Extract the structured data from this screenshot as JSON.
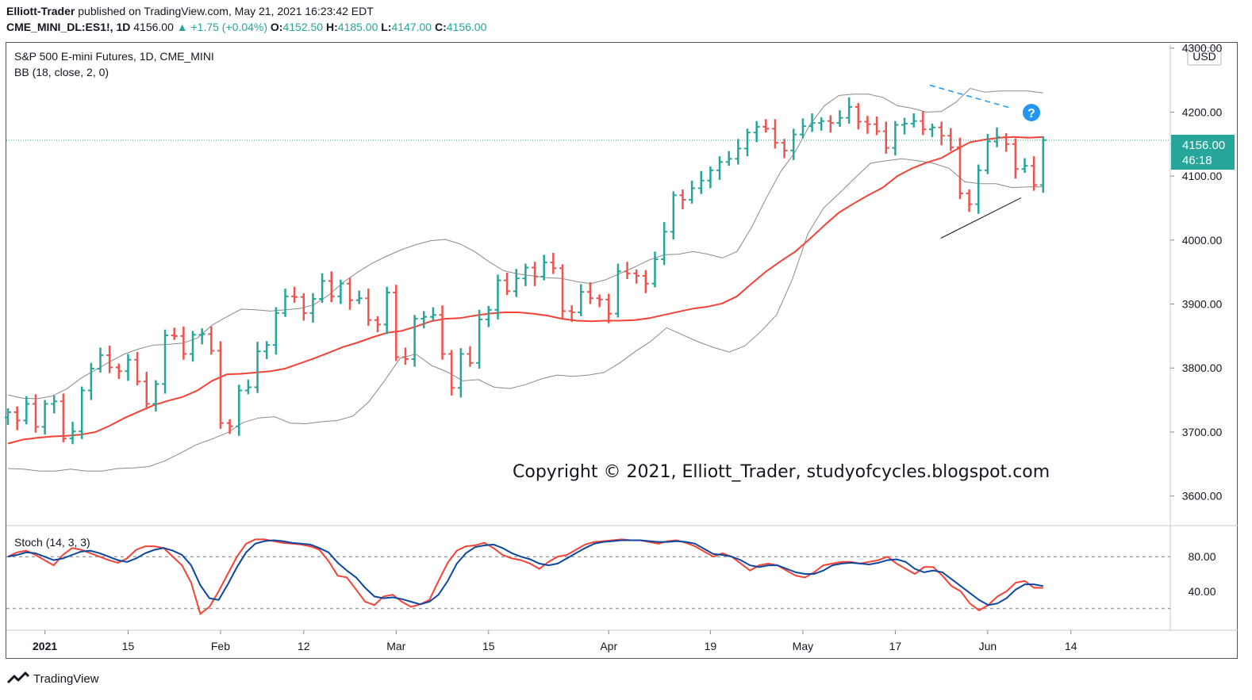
{
  "header": {
    "author": "Elliott-Trader",
    "published_text": "published on TradingView.com, May 21, 2021 16:23:42 EDT",
    "symbol": "CME_MINI_DL:ES1!, 1D",
    "last": "4156.00",
    "change": "▲ +1.75 (+0.04%)",
    "o_label": "O:",
    "o_value": "4152.50",
    "h_label": "H:",
    "h_value": "4185.00",
    "l_label": "L:",
    "l_value": "4147.00",
    "c_label": "C:",
    "c_value": "4156.00"
  },
  "chart_data": {
    "type": "ohlc",
    "title": "S&P 500 E-mini Futures, 1D, CME_MINI",
    "indicator_label": "BB (18, close, 2, 0)",
    "currency": "USD",
    "copyright": "Copyright © 2021, Elliott_Trader, studyofcycles.blogspot.com",
    "ylim": [
      3555,
      4307
    ],
    "yticks": [
      3600,
      3700,
      3800,
      3900,
      4000,
      4100,
      4200,
      4300
    ],
    "ytick_labels": [
      "3600.00",
      "3700.00",
      "3800.00",
      "3900.00",
      "4000.00",
      "4100.00",
      "4200.00",
      "4300.00"
    ],
    "last_price": 4156.0,
    "last_price_label": "4156.00",
    "countdown_label": "46:18",
    "xlim": [
      0,
      104
    ],
    "xticks": [
      {
        "i": 4,
        "label": "2021"
      },
      {
        "i": 13,
        "label": "15"
      },
      {
        "i": 23,
        "label": "Feb"
      },
      {
        "i": 32,
        "label": "12"
      },
      {
        "i": 42,
        "label": "Mar"
      },
      {
        "i": 52,
        "label": "15"
      },
      {
        "i": 65,
        "label": "Apr"
      },
      {
        "i": 76,
        "label": "19"
      },
      {
        "i": 86,
        "label": "May"
      },
      {
        "i": 96,
        "label": "17"
      },
      {
        "i": 106,
        "label": "Jun"
      },
      {
        "i": 115,
        "label": "14"
      }
    ],
    "close": [
      3731,
      3718,
      3744,
      3708,
      3744,
      3748,
      3690,
      3701,
      3765,
      3799,
      3820,
      3801,
      3795,
      3813,
      3779,
      3744,
      3775,
      3851,
      3850,
      3822,
      3852,
      3853,
      3827,
      3714,
      3709,
      3765,
      3770,
      3826,
      3836,
      3886,
      3912,
      3911,
      3886,
      3908,
      3936,
      3912,
      3932,
      3906,
      3909,
      3875,
      3868,
      3918,
      3817,
      3814,
      3877,
      3880,
      3883,
      3822,
      3769,
      3822,
      3808,
      3876,
      3891,
      3937,
      3920,
      3940,
      3957,
      3943,
      3965,
      3956,
      3889,
      3887,
      3919,
      3909,
      3907,
      3885,
      3951,
      3948,
      3944,
      3932,
      3970,
      4013,
      4070,
      4063,
      4081,
      4093,
      4109,
      4122,
      4127,
      4143,
      4168,
      4177,
      4174,
      4152,
      4140,
      4165,
      4178,
      4183,
      4186,
      4183,
      4191,
      4208,
      4185,
      4181,
      4170,
      4144,
      4180,
      4182,
      4186,
      4173,
      4176,
      4163,
      4145,
      4073,
      4056,
      4109,
      4154,
      4161,
      4150,
      4111,
      4116,
      4086,
      4156
    ],
    "bb_basis": [
      3682,
      3688,
      3691,
      3693,
      3694,
      3696,
      3700,
      3710,
      3722,
      3732,
      3742,
      3749,
      3755,
      3765,
      3780,
      3790,
      3791,
      3793,
      3795,
      3799,
      3807,
      3815,
      3824,
      3833,
      3840,
      3848,
      3855,
      3858,
      3865,
      3873,
      3877,
      3878,
      3882,
      3885,
      3887,
      3887,
      3885,
      3882,
      3877,
      3874,
      3873,
      3874,
      3874,
      3875,
      3878,
      3883,
      3888,
      3893,
      3896,
      3901,
      3912,
      3932,
      3951,
      3967,
      3982,
      4002,
      4023,
      4043,
      4057,
      4070,
      4082,
      4100,
      4112,
      4121,
      4128,
      4141,
      4153,
      4157,
      4160,
      4161,
      4160,
      4161
    ],
    "bb_upper": [
      3758,
      3753,
      3752,
      3756,
      3767,
      3784,
      3797,
      3810,
      3822,
      3830,
      3836,
      3837,
      3839,
      3847,
      3867,
      3880,
      3892,
      3891,
      3889,
      3891,
      3893,
      3899,
      3914,
      3934,
      3950,
      3964,
      3975,
      3985,
      3993,
      3999,
      4001,
      3994,
      3982,
      3966,
      3952,
      3947,
      3944,
      3941,
      3940,
      3935,
      3932,
      3938,
      3948,
      3958,
      3969,
      3977,
      3978,
      3982,
      3978,
      3972,
      3982,
      4020,
      4065,
      4107,
      4138,
      4180,
      4210,
      4226,
      4228,
      4228,
      4223,
      4210,
      4206,
      4200,
      4201,
      4215,
      4237,
      4231,
      4233,
      4233,
      4233,
      4230
    ],
    "bb_lower": [
      3643,
      3642,
      3639,
      3639,
      3642,
      3639,
      3639,
      3643,
      3644,
      3646,
      3655,
      3667,
      3680,
      3689,
      3699,
      3715,
      3722,
      3724,
      3714,
      3713,
      3716,
      3718,
      3725,
      3747,
      3780,
      3815,
      3822,
      3804,
      3794,
      3780,
      3782,
      3770,
      3768,
      3774,
      3783,
      3789,
      3787,
      3789,
      3793,
      3808,
      3826,
      3842,
      3863,
      3852,
      3841,
      3832,
      3825,
      3835,
      3857,
      3883,
      3938,
      4010,
      4050,
      4073,
      4097,
      4120,
      4124,
      4127,
      4124,
      4120,
      4112,
      4091,
      4088,
      4088,
      4082,
      4083,
      4083
    ],
    "bb_lower_start": 0,
    "stoch": {
      "label": "Stoch (14, 3, 3)",
      "ylim": [
        -5,
        115
      ],
      "ytick_labels": [
        "80.00",
        "40.00"
      ],
      "levels": [
        80,
        20
      ],
      "k": [
        80,
        85,
        87,
        82,
        76,
        70,
        82,
        90,
        88,
        84,
        80,
        76,
        73,
        78,
        88,
        92,
        92,
        90,
        80,
        70,
        50,
        14,
        22,
        40,
        60,
        80,
        95,
        100,
        100,
        98,
        96,
        95,
        94,
        92,
        88,
        75,
        58,
        56,
        42,
        28,
        24,
        34,
        36,
        28,
        22,
        25,
        30,
        52,
        73,
        87,
        92,
        93,
        96,
        90,
        82,
        78,
        76,
        72,
        66,
        74,
        80,
        82,
        88,
        94,
        97,
        98,
        99,
        100,
        99,
        99,
        97,
        95,
        98,
        99,
        96,
        92,
        86,
        80,
        84,
        80,
        72,
        64,
        70,
        72,
        70,
        64,
        58,
        56,
        62,
        70,
        72,
        74,
        74,
        72,
        74,
        76,
        80,
        72,
        66,
        60,
        68,
        68,
        58,
        46,
        40,
        26,
        18,
        24,
        34,
        40,
        50,
        52,
        44,
        44
      ],
      "d": [
        80,
        82,
        85,
        84,
        80,
        76,
        78,
        82,
        86,
        87,
        84,
        80,
        76,
        74,
        78,
        84,
        88,
        90,
        87,
        82,
        70,
        47,
        32,
        30,
        48,
        68,
        85,
        95,
        98,
        99,
        98,
        96,
        95,
        94,
        90,
        85,
        73,
        64,
        56,
        44,
        34,
        32,
        33,
        31,
        28,
        25,
        28,
        36,
        52,
        72,
        84,
        91,
        93,
        94,
        90,
        84,
        80,
        77,
        72,
        70,
        72,
        78,
        84,
        90,
        95,
        97,
        98,
        99,
        99,
        99,
        98,
        97,
        97,
        98,
        97,
        95,
        89,
        83,
        82,
        80,
        76,
        70,
        68,
        70,
        70,
        66,
        62,
        60,
        60,
        64,
        70,
        72,
        73,
        72,
        71,
        73,
        76,
        77,
        74,
        66,
        62,
        64,
        62,
        54,
        46,
        38,
        30,
        24,
        26,
        32,
        42,
        48,
        48,
        46
      ]
    }
  },
  "footer": {
    "brand": "TradingView"
  },
  "colors": {
    "up": "#26a69a",
    "down": "#ef5350",
    "basis": "#f44336",
    "band": "#8a8a8a",
    "stoch_k": "#f44336",
    "stoch_d": "#0d47a1",
    "trend": "#2196f3",
    "question": "#2196f3"
  }
}
